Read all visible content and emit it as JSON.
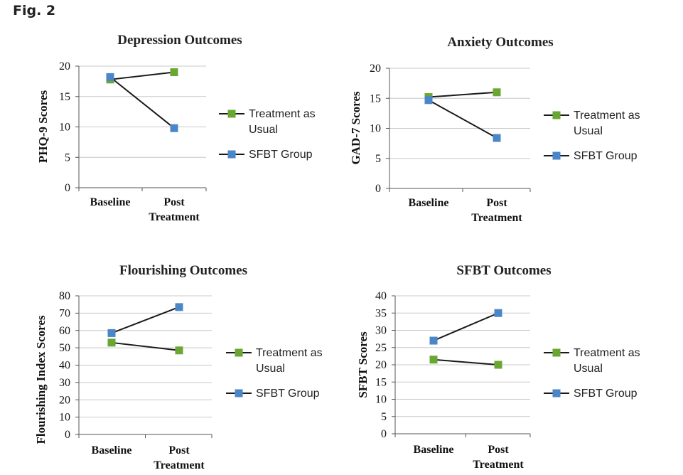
{
  "figure": {
    "label": "Fig. 2"
  },
  "colors": {
    "treatment_as_usual": "#6aa632",
    "sfbt_group": "#4a86c8",
    "line": "#1a1a1a",
    "grid": "#c8c8c8"
  },
  "chart_data": [
    {
      "type": "line",
      "title": "Depression Outcomes",
      "ylabel": "PHQ-9 Scores",
      "xlabel": "",
      "categories": [
        [
          "Baseline"
        ],
        [
          "Post",
          "Treatment"
        ]
      ],
      "ylim": [
        0,
        20
      ],
      "yticks": [
        "0",
        "5",
        "10",
        "15",
        "20"
      ],
      "grid": true,
      "legend": "right",
      "series": [
        {
          "name": [
            "Treatment as",
            "Usual"
          ],
          "values": [
            17.8,
            19
          ],
          "color": "#6aa632"
        },
        {
          "name": [
            "SFBT Group"
          ],
          "values": [
            18.2,
            9.8
          ],
          "color": "#4a86c8"
        }
      ]
    },
    {
      "type": "line",
      "title": "Anxiety Outcomes",
      "ylabel": "GAD-7 Scores",
      "xlabel": "",
      "categories": [
        [
          "Baseline"
        ],
        [
          "Post",
          "Treatment"
        ]
      ],
      "ylim": [
        0,
        20
      ],
      "yticks": [
        "0",
        "5",
        "10",
        "15",
        "20"
      ],
      "grid": true,
      "legend": "right",
      "series": [
        {
          "name": [
            "Treatment as",
            "Usual"
          ],
          "values": [
            15.2,
            16
          ],
          "color": "#6aa632"
        },
        {
          "name": [
            "SFBT Group"
          ],
          "values": [
            14.7,
            8.4
          ],
          "color": "#4a86c8"
        }
      ]
    },
    {
      "type": "line",
      "title": "Flourishing Outcomes",
      "ylabel": "Flourishing Index  Scores",
      "xlabel": "",
      "categories": [
        [
          "Baseline"
        ],
        [
          "Post",
          "Treatment"
        ]
      ],
      "ylim": [
        0,
        80
      ],
      "yticks": [
        "0",
        "10",
        "20",
        "30",
        "40",
        "50",
        "60",
        "70",
        "80"
      ],
      "grid": true,
      "legend": "right",
      "series": [
        {
          "name": [
            "Treatment as",
            "Usual"
          ],
          "values": [
            53,
            48.5
          ],
          "color": "#6aa632"
        },
        {
          "name": [
            "SFBT Group"
          ],
          "values": [
            58.5,
            73.5
          ],
          "color": "#4a86c8"
        }
      ]
    },
    {
      "type": "line",
      "title": "SFBT Outcomes",
      "ylabel": "SFBT Scores",
      "xlabel": "",
      "categories": [
        [
          "Baseline"
        ],
        [
          "Post",
          "Treatment"
        ]
      ],
      "ylim": [
        0,
        40
      ],
      "yticks": [
        "0",
        "5",
        "10",
        "15",
        "20",
        "25",
        "30",
        "35",
        "40"
      ],
      "grid": true,
      "legend": "right",
      "series": [
        {
          "name": [
            "Treatment as",
            "Usual"
          ],
          "values": [
            21.5,
            20
          ],
          "color": "#6aa632"
        },
        {
          "name": [
            "SFBT Group"
          ],
          "values": [
            27,
            35
          ],
          "color": "#4a86c8"
        }
      ]
    }
  ]
}
